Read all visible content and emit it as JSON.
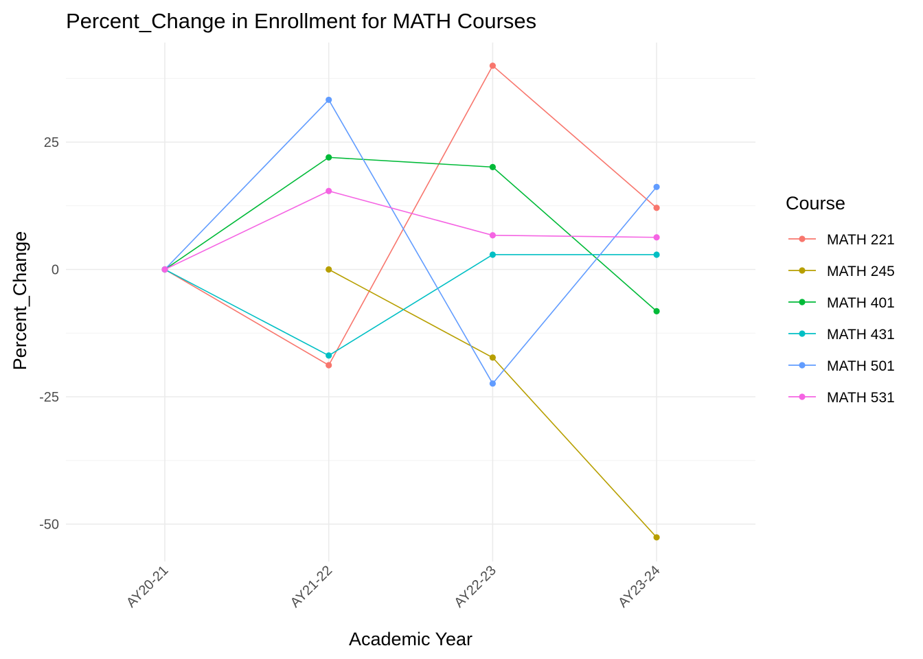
{
  "chart_data": {
    "type": "line",
    "title": "Percent_Change in Enrollment for MATH Courses",
    "xlabel": "Academic Year",
    "ylabel": "Percent_Change",
    "categories": [
      "AY20-21",
      "AY21-22",
      "AY22-23",
      "AY23-24"
    ],
    "ylim": [
      -57,
      45
    ],
    "yticks": [
      -50,
      -25,
      0,
      25
    ],
    "grid": true,
    "legend": {
      "title": "Course",
      "position": "right"
    },
    "series": [
      {
        "name": "MATH 221",
        "color": "#F8766D",
        "values": [
          0,
          -18.8,
          40.0,
          12.1
        ]
      },
      {
        "name": "MATH 245",
        "color": "#B79F00",
        "values": [
          null,
          0,
          -17.3,
          -52.6
        ]
      },
      {
        "name": "MATH 401",
        "color": "#00BA38",
        "values": [
          0,
          22.0,
          20.1,
          -8.2
        ]
      },
      {
        "name": "MATH 431",
        "color": "#00BFC4",
        "values": [
          0,
          -16.9,
          2.9,
          2.9
        ]
      },
      {
        "name": "MATH 501",
        "color": "#619CFF",
        "values": [
          0,
          33.3,
          -22.4,
          16.2
        ]
      },
      {
        "name": "MATH 531",
        "color": "#F564E3",
        "values": [
          0,
          15.4,
          6.7,
          6.3
        ]
      }
    ]
  }
}
